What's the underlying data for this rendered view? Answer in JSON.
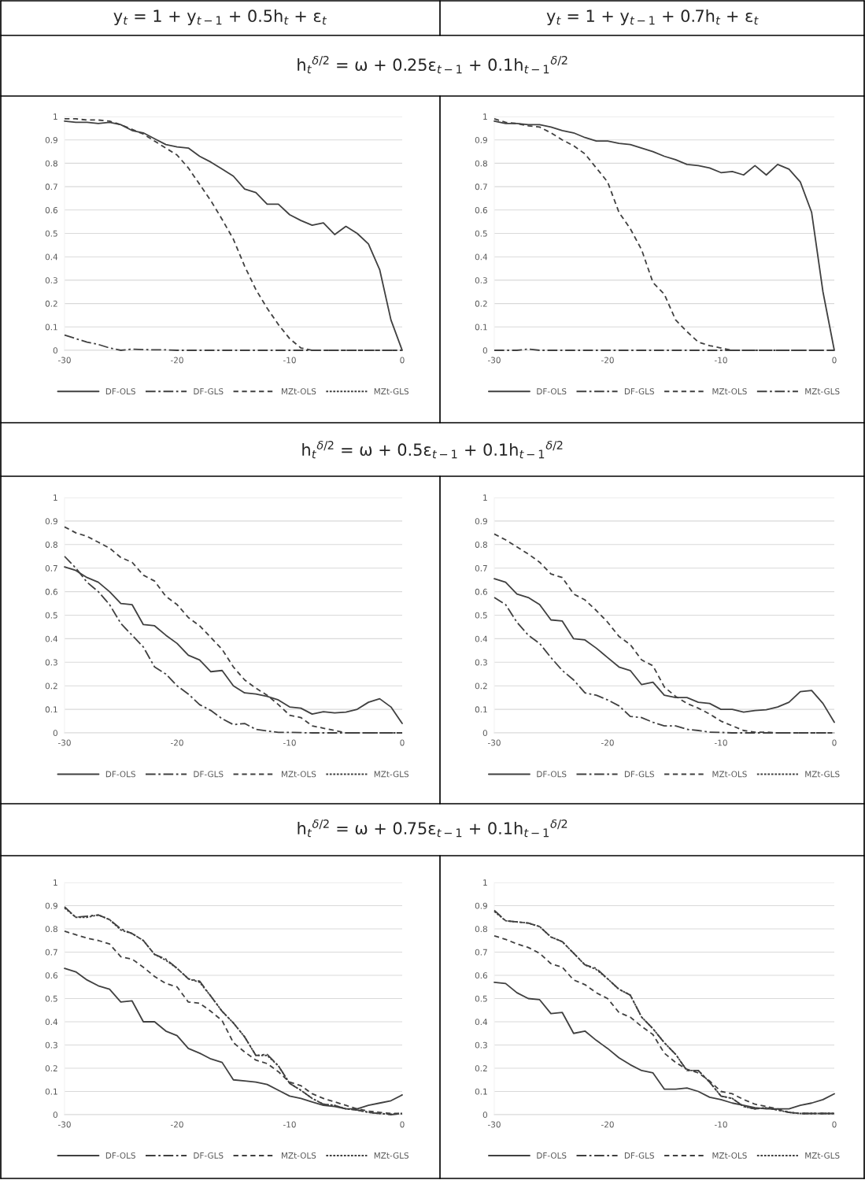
{
  "chart_data": [
    {
      "type": "line",
      "title": "y$_{t}$ = 1 + y$_{t−1}$ + 0.5h$_{t}$ + ε$_{t}$",
      "annotations": [
        "h$_{t}$$^{δ/2}$ = ω + 0.25ε$_{t−1}$ + 0.1h$_{t−1}$$^{δ/2}$"
      ],
      "x": [
        -30,
        -29,
        -28,
        -27,
        -26,
        -25,
        -24,
        -23,
        -22,
        -21,
        -20,
        -19,
        -18,
        -17,
        -16,
        -15,
        -14,
        -13,
        -12,
        -11,
        -10,
        -9,
        -8,
        -7,
        -6,
        -5,
        -4,
        -3,
        -2,
        -1,
        0
      ],
      "xlim": [
        -30,
        0
      ],
      "xticks": [
        -30,
        -20,
        -10,
        0
      ],
      "ylim": [
        0,
        1
      ],
      "yticks": [
        0,
        0.1,
        0.2,
        0.3,
        0.4,
        0.5,
        0.6,
        0.7,
        0.8,
        0.9,
        1
      ],
      "grid": "y",
      "legend": "bottom",
      "series": [
        {
          "name": "DF-OLS",
          "color": "#404040",
          "line_style": "solid",
          "values": [
            0.98,
            0.975,
            0.975,
            0.97,
            0.975,
            0.965,
            0.94,
            0.93,
            0.905,
            0.88,
            0.87,
            0.865,
            0.83,
            0.805,
            0.775,
            0.745,
            0.69,
            0.675,
            0.625,
            0.625,
            0.58,
            0.555,
            0.535,
            0.545,
            0.495,
            0.53,
            0.5,
            0.455,
            0.345,
            0.13,
            0
          ]
        },
        {
          "name": "DF-GLS",
          "color": "#404040",
          "line_style": "dashdot",
          "values": [
            0.065,
            0.05,
            0.035,
            0.025,
            0.01,
            0,
            0.005,
            0.003,
            0.002,
            0.002,
            0,
            0,
            0,
            0,
            0,
            0,
            0,
            0,
            0,
            0,
            0,
            0,
            0,
            0,
            0,
            0,
            0,
            0,
            0,
            0,
            0
          ]
        },
        {
          "name": "MZt-OLS",
          "color": "#404040",
          "line_style": "dashed",
          "values": [
            0.99,
            0.99,
            0.985,
            0.985,
            0.98,
            0.965,
            0.945,
            0.925,
            0.895,
            0.865,
            0.835,
            0.78,
            0.71,
            0.64,
            0.56,
            0.475,
            0.36,
            0.26,
            0.18,
            0.11,
            0.05,
            0.01,
            0,
            0,
            0,
            0,
            0,
            0,
            0,
            0,
            0
          ]
        },
        {
          "name": "MZt-GLS",
          "color": "#404040",
          "line_style": "dotted",
          "values": [
            null,
            null,
            null,
            null,
            null,
            null,
            null,
            null,
            null,
            null,
            null,
            null,
            null,
            null,
            null,
            null,
            null,
            null,
            null,
            null,
            null,
            null,
            null,
            null,
            null,
            null,
            null,
            null,
            null,
            null,
            null
          ]
        }
      ]
    },
    {
      "type": "line",
      "title": "y$_{t}$ = 1 + y$_{t−1}$ + 0.7h$_{t}$ + ε$_{t}$",
      "x": [
        -30,
        -29,
        -28,
        -27,
        -26,
        -25,
        -24,
        -23,
        -22,
        -21,
        -20,
        -19,
        -18,
        -17,
        -16,
        -15,
        -14,
        -13,
        -12,
        -11,
        -10,
        -9,
        -8,
        -7,
        -6,
        -5,
        -4,
        -3,
        -2,
        -1,
        0
      ],
      "xlim": [
        -30,
        0
      ],
      "xticks": [
        -30,
        -20,
        -10,
        0
      ],
      "ylim": [
        0,
        1
      ],
      "yticks": [
        0,
        0.1,
        0.2,
        0.3,
        0.4,
        0.5,
        0.6,
        0.7,
        0.8,
        0.9,
        1
      ],
      "grid": "y",
      "legend": "bottom",
      "series": [
        {
          "name": "DF-OLS",
          "color": "#404040",
          "line_style": "solid",
          "values": [
            0.98,
            0.97,
            0.97,
            0.965,
            0.965,
            0.955,
            0.94,
            0.93,
            0.91,
            0.895,
            0.895,
            0.885,
            0.88,
            0.865,
            0.85,
            0.83,
            0.815,
            0.795,
            0.79,
            0.78,
            0.76,
            0.765,
            0.75,
            0.79,
            0.75,
            0.795,
            0.775,
            0.72,
            0.59,
            0.25,
            0
          ]
        },
        {
          "name": "DF-GLS",
          "color": "#404040",
          "line_style": "dashdot",
          "values": [
            0,
            0,
            0,
            0.005,
            0,
            0,
            0,
            0,
            0,
            0,
            0,
            0,
            0,
            0,
            0,
            0,
            0,
            0,
            0,
            0,
            0,
            0,
            0,
            0,
            0,
            0,
            0,
            0,
            0,
            0,
            0
          ]
        },
        {
          "name": "MZt-OLS",
          "color": "#404040",
          "line_style": "dashed",
          "values": [
            0.99,
            0.975,
            0.97,
            0.96,
            0.955,
            0.93,
            0.9,
            0.875,
            0.84,
            0.78,
            0.72,
            0.59,
            0.52,
            0.43,
            0.29,
            0.24,
            0.13,
            0.08,
            0.035,
            0.02,
            0.01,
            0,
            0,
            0,
            0,
            0,
            0,
            0,
            0,
            0,
            0
          ]
        },
        {
          "name": "MZt-GLS",
          "color": "#404040",
          "line_style": "dashdot",
          "values": [
            null,
            null,
            null,
            null,
            null,
            null,
            null,
            null,
            null,
            null,
            null,
            null,
            null,
            null,
            null,
            null,
            null,
            null,
            null,
            null,
            null,
            null,
            null,
            null,
            null,
            null,
            null,
            null,
            null,
            null,
            null
          ]
        }
      ]
    },
    {
      "type": "line",
      "annotations": [
        "h$_{t}$$^{δ/2}$ = ω + 0.5ε$_{t−1}$ + 0.1h$_{t−1}$$^{δ/2}$"
      ],
      "x": [
        -30,
        -29,
        -28,
        -27,
        -26,
        -25,
        -24,
        -23,
        -22,
        -21,
        -20,
        -19,
        -18,
        -17,
        -16,
        -15,
        -14,
        -13,
        -12,
        -11,
        -10,
        -9,
        -8,
        -7,
        -6,
        -5,
        -4,
        -3,
        -2,
        -1,
        0
      ],
      "xlim": [
        -30,
        0
      ],
      "xticks": [
        -30,
        -20,
        -10,
        0
      ],
      "ylim": [
        0,
        1
      ],
      "yticks": [
        0,
        0.1,
        0.2,
        0.3,
        0.4,
        0.5,
        0.6,
        0.7,
        0.8,
        0.9,
        1
      ],
      "grid": "y",
      "legend": "bottom",
      "series": [
        {
          "name": "DF-OLS",
          "color": "#404040",
          "line_style": "solid",
          "values": [
            0.705,
            0.69,
            0.66,
            0.64,
            0.6,
            0.55,
            0.545,
            0.46,
            0.455,
            0.415,
            0.38,
            0.33,
            0.31,
            0.26,
            0.265,
            0.2,
            0.17,
            0.165,
            0.155,
            0.14,
            0.11,
            0.105,
            0.08,
            0.09,
            0.085,
            0.088,
            0.1,
            0.13,
            0.145,
            0.11,
            0.04
          ]
        },
        {
          "name": "DF-GLS",
          "color": "#404040",
          "line_style": "dashdot",
          "values": [
            0.75,
            0.7,
            0.64,
            0.6,
            0.545,
            0.465,
            0.415,
            0.365,
            0.28,
            0.25,
            0.2,
            0.165,
            0.12,
            0.095,
            0.06,
            0.035,
            0.04,
            0.015,
            0.008,
            0.002,
            0.002,
            0.001,
            0,
            0,
            0,
            0,
            0,
            0,
            0,
            0,
            0
          ]
        },
        {
          "name": "MZt-OLS",
          "color": "#404040",
          "line_style": "dashed",
          "values": [
            0.875,
            0.85,
            0.835,
            0.81,
            0.785,
            0.745,
            0.725,
            0.67,
            0.645,
            0.58,
            0.545,
            0.49,
            0.455,
            0.405,
            0.355,
            0.28,
            0.225,
            0.19,
            0.16,
            0.12,
            0.075,
            0.065,
            0.03,
            0.02,
            0.01,
            0,
            0,
            0,
            0,
            0,
            0
          ]
        },
        {
          "name": "MZt-GLS",
          "color": "#404040",
          "line_style": "dotted",
          "values": [
            null,
            null,
            null,
            null,
            null,
            null,
            null,
            null,
            null,
            null,
            null,
            null,
            null,
            null,
            null,
            null,
            null,
            null,
            null,
            null,
            null,
            null,
            null,
            null,
            null,
            null,
            null,
            null,
            null,
            null,
            null
          ]
        }
      ]
    },
    {
      "type": "line",
      "x": [
        -30,
        -29,
        -28,
        -27,
        -26,
        -25,
        -24,
        -23,
        -22,
        -21,
        -20,
        -19,
        -18,
        -17,
        -16,
        -15,
        -14,
        -13,
        -12,
        -11,
        -10,
        -9,
        -8,
        -7,
        -6,
        -5,
        -4,
        -3,
        -2,
        -1,
        0
      ],
      "xlim": [
        -30,
        0
      ],
      "xticks": [
        -30,
        -20,
        -10,
        0
      ],
      "ylim": [
        0,
        1
      ],
      "yticks": [
        0,
        0.1,
        0.2,
        0.3,
        0.4,
        0.5,
        0.6,
        0.7,
        0.8,
        0.9,
        1
      ],
      "grid": "y",
      "legend": "bottom",
      "series": [
        {
          "name": "DF-OLS",
          "color": "#404040",
          "line_style": "solid",
          "values": [
            0.655,
            0.64,
            0.59,
            0.575,
            0.545,
            0.48,
            0.475,
            0.4,
            0.395,
            0.36,
            0.32,
            0.28,
            0.265,
            0.205,
            0.215,
            0.16,
            0.15,
            0.15,
            0.13,
            0.125,
            0.1,
            0.1,
            0.088,
            0.095,
            0.098,
            0.11,
            0.13,
            0.175,
            0.18,
            0.125,
            0.045
          ]
        },
        {
          "name": "DF-GLS",
          "color": "#404040",
          "line_style": "dashdot",
          "values": [
            0.575,
            0.545,
            0.47,
            0.415,
            0.38,
            0.32,
            0.265,
            0.225,
            0.17,
            0.16,
            0.14,
            0.115,
            0.07,
            0.065,
            0.045,
            0.03,
            0.03,
            0.015,
            0.01,
            0.003,
            0.002,
            0,
            0,
            0,
            0,
            0,
            0,
            0,
            0,
            0,
            0
          ]
        },
        {
          "name": "MZt-OLS",
          "color": "#404040",
          "line_style": "dashed",
          "values": [
            0.845,
            0.82,
            0.79,
            0.76,
            0.725,
            0.675,
            0.66,
            0.59,
            0.565,
            0.52,
            0.47,
            0.41,
            0.375,
            0.31,
            0.285,
            0.195,
            0.155,
            0.125,
            0.105,
            0.08,
            0.05,
            0.03,
            0.01,
            0.003,
            0.003,
            0,
            0,
            0,
            0,
            0,
            0
          ]
        },
        {
          "name": "MZt-GLS",
          "color": "#404040",
          "line_style": "dotted",
          "values": [
            null,
            null,
            null,
            null,
            null,
            null,
            null,
            null,
            null,
            null,
            null,
            null,
            null,
            null,
            null,
            null,
            null,
            null,
            null,
            null,
            null,
            null,
            null,
            null,
            null,
            null,
            null,
            null,
            null,
            null,
            null
          ]
        }
      ]
    },
    {
      "type": "line",
      "annotations": [
        "h$_{t}$$^{δ/2}$ = ω + 0.75ε$_{t−1}$ + 0.1h$_{t−1}$$^{δ/2}$"
      ],
      "x": [
        -30,
        -29,
        -28,
        -27,
        -26,
        -25,
        -24,
        -23,
        -22,
        -21,
        -20,
        -19,
        -18,
        -17,
        -16,
        -15,
        -14,
        -13,
        -12,
        -11,
        -10,
        -9,
        -8,
        -7,
        -6,
        -5,
        -4,
        -3,
        -2,
        -1,
        0
      ],
      "xlim": [
        -30,
        0
      ],
      "xticks": [
        -30,
        -20,
        -10,
        0
      ],
      "ylim": [
        0,
        1
      ],
      "yticks": [
        0,
        0.1,
        0.2,
        0.3,
        0.4,
        0.5,
        0.6,
        0.7,
        0.8,
        0.9,
        1
      ],
      "grid": "y",
      "legend": "bottom",
      "series": [
        {
          "name": "DF-OLS",
          "color": "#404040",
          "line_style": "solid",
          "values": [
            0.63,
            0.615,
            0.58,
            0.555,
            0.54,
            0.485,
            0.49,
            0.4,
            0.4,
            0.36,
            0.34,
            0.285,
            0.265,
            0.24,
            0.225,
            0.15,
            0.145,
            0.14,
            0.13,
            0.105,
            0.08,
            0.07,
            0.055,
            0.04,
            0.035,
            0.025,
            0.025,
            0.04,
            0.05,
            0.06,
            0.085
          ]
        },
        {
          "name": "DF-GLS",
          "color": "#404040",
          "line_style": "dashdot",
          "values": [
            0.895,
            0.85,
            0.855,
            0.86,
            0.84,
            0.8,
            0.78,
            0.75,
            0.69,
            0.67,
            0.63,
            0.585,
            0.575,
            0.51,
            0.445,
            0.395,
            0.335,
            0.255,
            0.26,
            0.21,
            0.135,
            0.105,
            0.07,
            0.045,
            0.04,
            0.025,
            0.02,
            0.01,
            0.005,
            0,
            0.005
          ]
        },
        {
          "name": "MZt-OLS",
          "color": "#404040",
          "line_style": "dashed",
          "values": [
            0.79,
            0.775,
            0.76,
            0.75,
            0.735,
            0.68,
            0.67,
            0.635,
            0.595,
            0.565,
            0.55,
            0.485,
            0.48,
            0.445,
            0.405,
            0.31,
            0.27,
            0.235,
            0.22,
            0.185,
            0.14,
            0.125,
            0.09,
            0.07,
            0.055,
            0.04,
            0.025,
            0.015,
            0.01,
            0.005,
            0.005
          ]
        },
        {
          "name": "MZt-GLS",
          "color": "#404040",
          "line_style": "dotted",
          "values": [
            0.89,
            0.85,
            0.85,
            0.86,
            0.84,
            0.795,
            0.78,
            0.75,
            0.69,
            0.665,
            0.63,
            0.585,
            0.57,
            0.51,
            0.445,
            0.395,
            0.335,
            0.255,
            0.255,
            0.21,
            0.135,
            0.105,
            0.07,
            0.045,
            0.04,
            0.025,
            0.02,
            0.01,
            0.005,
            0.002,
            0.005
          ]
        }
      ]
    },
    {
      "type": "line",
      "x": [
        -30,
        -29,
        -28,
        -27,
        -26,
        -25,
        -24,
        -23,
        -22,
        -21,
        -20,
        -19,
        -18,
        -17,
        -16,
        -15,
        -14,
        -13,
        -12,
        -11,
        -10,
        -9,
        -8,
        -7,
        -6,
        -5,
        -4,
        -3,
        -2,
        -1,
        0
      ],
      "xlim": [
        -30,
        0
      ],
      "xticks": [
        -30,
        -20,
        -10,
        0
      ],
      "ylim": [
        0,
        1
      ],
      "yticks": [
        0,
        0.1,
        0.2,
        0.3,
        0.4,
        0.5,
        0.6,
        0.7,
        0.8,
        0.9,
        1
      ],
      "grid": "y",
      "legend": "bottom",
      "series": [
        {
          "name": "DF-OLS",
          "color": "#404040",
          "line_style": "solid",
          "values": [
            0.57,
            0.565,
            0.525,
            0.5,
            0.495,
            0.435,
            0.44,
            0.35,
            0.36,
            0.32,
            0.285,
            0.245,
            0.215,
            0.19,
            0.18,
            0.11,
            0.11,
            0.115,
            0.1,
            0.075,
            0.065,
            0.05,
            0.04,
            0.03,
            0.025,
            0.025,
            0.025,
            0.04,
            0.05,
            0.065,
            0.09
          ]
        },
        {
          "name": "DF-GLS",
          "color": "#404040",
          "line_style": "dashdot",
          "values": [
            0.88,
            0.835,
            0.83,
            0.825,
            0.81,
            0.765,
            0.745,
            0.695,
            0.645,
            0.63,
            0.585,
            0.54,
            0.515,
            0.42,
            0.37,
            0.31,
            0.26,
            0.19,
            0.19,
            0.14,
            0.08,
            0.07,
            0.035,
            0.025,
            0.03,
            0.02,
            0.01,
            0.005,
            0.005,
            0.005,
            0.005
          ]
        },
        {
          "name": "MZt-OLS",
          "color": "#404040",
          "line_style": "dashed",
          "values": [
            0.77,
            0.755,
            0.735,
            0.72,
            0.695,
            0.65,
            0.635,
            0.58,
            0.56,
            0.525,
            0.5,
            0.44,
            0.42,
            0.38,
            0.345,
            0.265,
            0.225,
            0.195,
            0.18,
            0.145,
            0.1,
            0.09,
            0.065,
            0.045,
            0.035,
            0.025,
            0.01,
            0.005,
            0.005,
            0.005,
            0.005
          ]
        },
        {
          "name": "MZt-GLS",
          "color": "#404040",
          "line_style": "dotted",
          "values": [
            0.875,
            0.835,
            0.83,
            0.825,
            0.81,
            0.765,
            0.745,
            0.695,
            0.645,
            0.625,
            0.585,
            0.54,
            0.515,
            0.42,
            0.37,
            0.31,
            0.26,
            0.19,
            0.19,
            0.14,
            0.08,
            0.07,
            0.035,
            0.025,
            0.03,
            0.02,
            0.01,
            0.005,
            0.005,
            0.005,
            0.005
          ]
        }
      ]
    }
  ]
}
